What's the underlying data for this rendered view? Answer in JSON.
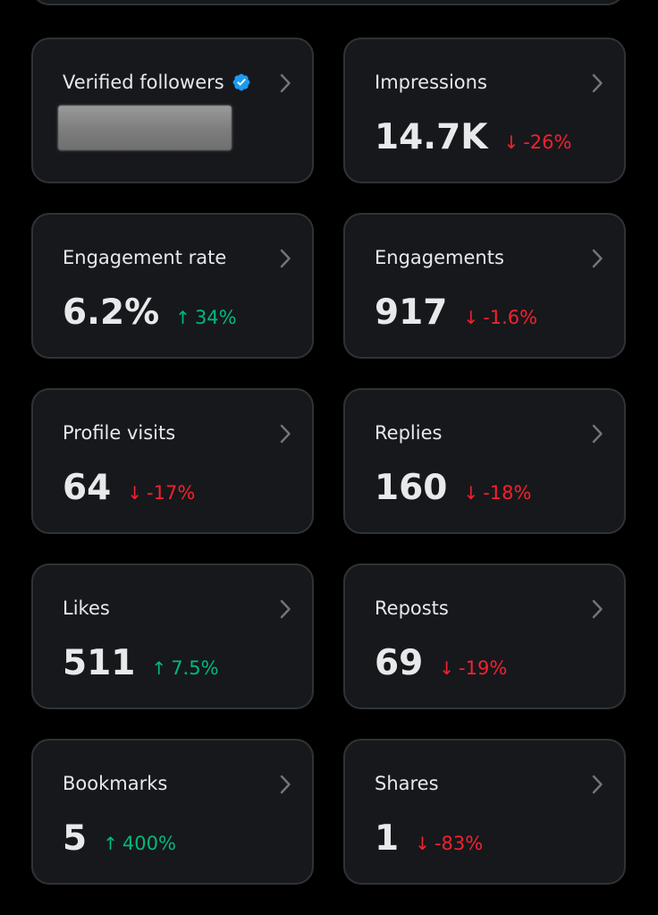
{
  "colors": {
    "background": "#000000",
    "card_background": "#16181c",
    "card_border": "#2f3336",
    "text_primary": "#e7e9ea",
    "text_secondary": "#71767b",
    "down": "#f4212e",
    "up": "#00ba7c",
    "verified": "#1d9bf0"
  },
  "cards": [
    {
      "title": "Verified followers",
      "value": "",
      "change": "",
      "direction": "",
      "icon": "verified-badge-icon",
      "redacted": true
    },
    {
      "title": "Impressions",
      "value": "14.7K",
      "change": "-26%",
      "direction": "down"
    },
    {
      "title": "Engagement rate",
      "value": "6.2%",
      "change": "34%",
      "direction": "up"
    },
    {
      "title": "Engagements",
      "value": "917",
      "change": "-1.6%",
      "direction": "down"
    },
    {
      "title": "Profile visits",
      "value": "64",
      "change": "-17%",
      "direction": "down"
    },
    {
      "title": "Replies",
      "value": "160",
      "change": "-18%",
      "direction": "down"
    },
    {
      "title": "Likes",
      "value": "511",
      "change": "7.5%",
      "direction": "up"
    },
    {
      "title": "Reposts",
      "value": "69",
      "change": "-19%",
      "direction": "down"
    },
    {
      "title": "Bookmarks",
      "value": "5",
      "change": "400%",
      "direction": "up"
    },
    {
      "title": "Shares",
      "value": "1",
      "change": "-83%",
      "direction": "down"
    }
  ],
  "arrows": {
    "up": "↑",
    "down": "↓"
  }
}
